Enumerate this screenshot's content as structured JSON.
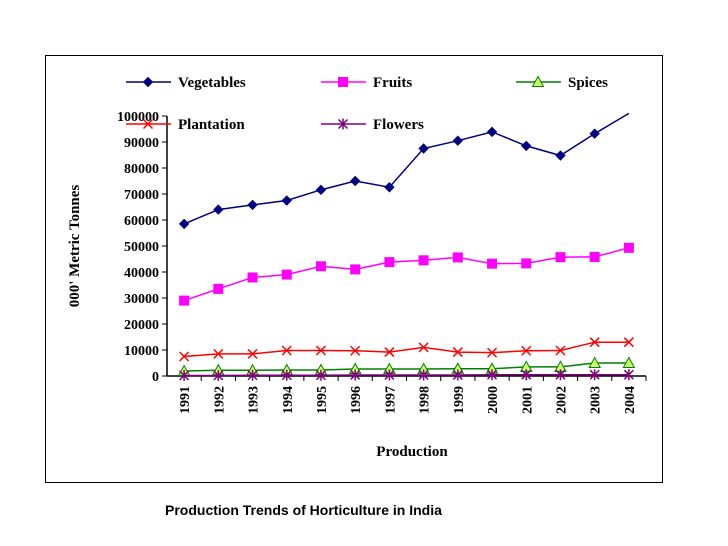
{
  "caption": "Production Trends of Horticulture in India",
  "chart_data": {
    "type": "line",
    "xlabel": "Production",
    "ylabel": "000' Metric Tonnes",
    "ylim": [
      0,
      100000
    ],
    "yticks": [
      0,
      10000,
      20000,
      30000,
      40000,
      50000,
      60000,
      70000,
      80000,
      90000,
      100000
    ],
    "categories": [
      "1991",
      "1992",
      "1993",
      "1994",
      "1995",
      "1996",
      "1997",
      "1998",
      "1999",
      "2000",
      "2001",
      "2002",
      "2003",
      "2004"
    ],
    "legend_position": "top",
    "grid": false,
    "series": [
      {
        "name": "Vegetables",
        "color": "#000080",
        "marker": "diamond",
        "marker_fill": "#000080",
        "values": [
          58500,
          64000,
          65800,
          67500,
          71600,
          75000,
          72600,
          87500,
          90500,
          93900,
          88500,
          84800,
          93200,
          101000
        ]
      },
      {
        "name": "Fruits",
        "color": "#ff00ff",
        "marker": "square",
        "marker_fill": "#ff00ff",
        "values": [
          29000,
          33500,
          37900,
          39000,
          42200,
          41000,
          43800,
          44500,
          45600,
          43200,
          43300,
          45700,
          45800,
          49300
        ]
      },
      {
        "name": "Spices",
        "color": "#008000",
        "marker": "triangle",
        "marker_fill": "#ccff66",
        "values": [
          1900,
          2200,
          2200,
          2300,
          2300,
          2700,
          2700,
          2700,
          2800,
          2800,
          3500,
          3500,
          5000,
          5000
        ]
      },
      {
        "name": "Plantation",
        "color": "#ff0000",
        "marker": "x",
        "marker_fill": "#ff0000",
        "values": [
          7500,
          8500,
          8500,
          9800,
          9800,
          9700,
          9200,
          11000,
          9200,
          9000,
          9700,
          9800,
          13000,
          13000
        ]
      },
      {
        "name": "Flowers",
        "color": "#800080",
        "marker": "star",
        "marker_fill": "#800080",
        "values": [
          200,
          200,
          300,
          300,
          300,
          400,
          400,
          400,
          400,
          500,
          500,
          500,
          500,
          500
        ]
      }
    ]
  }
}
